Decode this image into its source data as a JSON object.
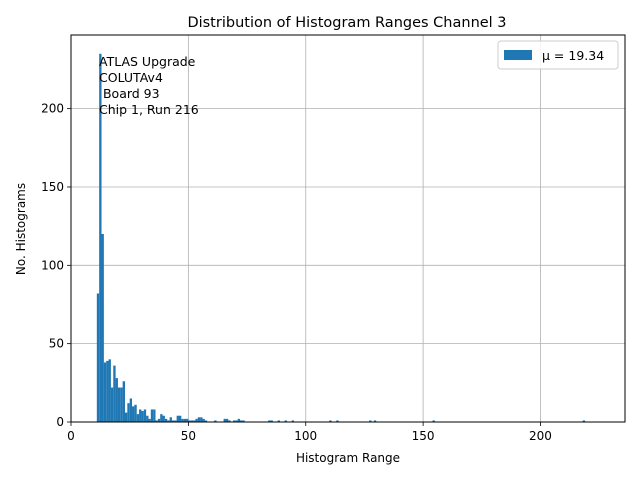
{
  "chart_data": {
    "type": "bar",
    "title": "Distribution of Histogram Ranges Channel 3",
    "xlabel": "Histogram Range",
    "ylabel": "No. Histograms",
    "xlim": [
      0,
      236
    ],
    "ylim": [
      0,
      247
    ],
    "xticks": [
      0,
      50,
      100,
      150,
      200
    ],
    "yticks": [
      0,
      50,
      100,
      150,
      200
    ],
    "grid": true,
    "bar_color": "#1f77b4",
    "bin_width": 1,
    "annotation": [
      "ATLAS Upgrade",
      "COLUTAv4",
      " Board 93",
      "Chip 1, Run 216"
    ],
    "legend": {
      "label": "μ = 19.34",
      "placement": "top-right"
    },
    "bins": [
      [
        11,
        82
      ],
      [
        12,
        235
      ],
      [
        13,
        120
      ],
      [
        14,
        38
      ],
      [
        15,
        39
      ],
      [
        16,
        40
      ],
      [
        17,
        22
      ],
      [
        18,
        36
      ],
      [
        19,
        28
      ],
      [
        20,
        22
      ],
      [
        21,
        22
      ],
      [
        22,
        26
      ],
      [
        23,
        6
      ],
      [
        24,
        12
      ],
      [
        25,
        15
      ],
      [
        26,
        10
      ],
      [
        27,
        11
      ],
      [
        28,
        5
      ],
      [
        29,
        8
      ],
      [
        30,
        7
      ],
      [
        31,
        8
      ],
      [
        32,
        4
      ],
      [
        33,
        2
      ],
      [
        34,
        8
      ],
      [
        35,
        8
      ],
      [
        36,
        1
      ],
      [
        37,
        2
      ],
      [
        38,
        5
      ],
      [
        39,
        4
      ],
      [
        40,
        2
      ],
      [
        41,
        1
      ],
      [
        42,
        3
      ],
      [
        43,
        1
      ],
      [
        44,
        1
      ],
      [
        45,
        4
      ],
      [
        46,
        4
      ],
      [
        47,
        2
      ],
      [
        48,
        2
      ],
      [
        49,
        2
      ],
      [
        50,
        1
      ],
      [
        51,
        1
      ],
      [
        52,
        1
      ],
      [
        53,
        2
      ],
      [
        54,
        3
      ],
      [
        55,
        3
      ],
      [
        56,
        2
      ],
      [
        57,
        1
      ],
      [
        61,
        1
      ],
      [
        65,
        2
      ],
      [
        66,
        2
      ],
      [
        67,
        1
      ],
      [
        69,
        1
      ],
      [
        70,
        1
      ],
      [
        71,
        2
      ],
      [
        72,
        1
      ],
      [
        73,
        1
      ],
      [
        84,
        1
      ],
      [
        85,
        1
      ],
      [
        88,
        1
      ],
      [
        91,
        1
      ],
      [
        94,
        1
      ],
      [
        110,
        1
      ],
      [
        113,
        1
      ],
      [
        127,
        1
      ],
      [
        129,
        1
      ],
      [
        154,
        1
      ],
      [
        218,
        1
      ]
    ]
  }
}
